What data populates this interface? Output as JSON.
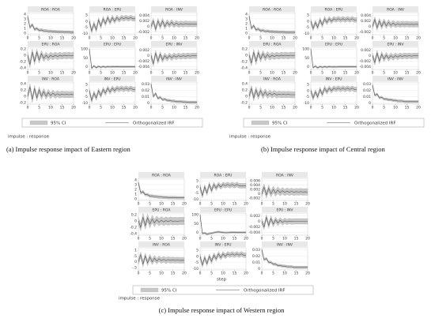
{
  "panels": [
    {
      "legend": [
        "95% CI",
        "Orthogonalized IRF"
      ],
      "note": "impulse : response",
      "caption": "(a) Impulse response impact of Eastern region"
    },
    {
      "legend": [
        "95% CI",
        "Orthogonalized IRF"
      ],
      "note": "impulse : response",
      "caption": "(b) Impulse response impact of Central region"
    },
    {
      "legend": [
        "95% CI",
        "Orthogonalized IRF"
      ],
      "note": "impulse : response",
      "caption": "(c) Impulse response impact of Western region",
      "xlabel": "step"
    }
  ],
  "chart_data": [
    {
      "type": "line",
      "title": "ROA : ROA",
      "xlim": [
        0,
        20
      ],
      "xticks": [
        0,
        5,
        10,
        15,
        20
      ],
      "ylim": [
        -0.3,
        4.3
      ],
      "yticks": [
        0,
        1,
        2,
        3,
        4
      ],
      "ci": 0.3,
      "values": [
        3.5,
        1.2,
        1.8,
        0.8,
        1.0,
        0.6,
        0.7,
        0.5,
        0.5,
        0.4,
        0.4,
        0.35,
        0.35,
        0.3,
        0.3,
        0.3,
        0.25,
        0.25,
        0.25,
        0.2,
        0.2
      ]
    },
    {
      "type": "line",
      "title": "ROA : EPU",
      "xlim": [
        0,
        20
      ],
      "xticks": [
        0,
        5,
        10,
        15,
        20
      ],
      "ylim": [
        -11,
        7
      ],
      "yticks": [
        -10,
        -5,
        0,
        5
      ],
      "ci": 2,
      "values": [
        0,
        -8,
        -2,
        -7,
        1,
        -4,
        2,
        -2,
        3,
        -1,
        3,
        0,
        3,
        1,
        3,
        2,
        3,
        2,
        3,
        2,
        2
      ]
    },
    {
      "type": "line",
      "title": "ROA : INV",
      "xlim": [
        0,
        20
      ],
      "xticks": [
        0,
        5,
        10,
        15,
        20
      ],
      "ylim": [
        -0.003,
        0.005
      ],
      "yticks": [
        -0.002,
        0,
        0.002,
        0.004
      ],
      "ci": 0.001,
      "values": [
        0,
        0.002,
        -0.001,
        0.002,
        0,
        0.002,
        0,
        0.0015,
        0.0005,
        0.0015,
        0.0005,
        0.0012,
        0.0006,
        0.001,
        0.0007,
        0.001,
        0.0008,
        0.0009,
        0.0008,
        0.0009,
        0.0008
      ]
    },
    {
      "type": "line",
      "title": "EPU : ROA",
      "xlim": [
        0,
        20
      ],
      "xticks": [
        0,
        5,
        10,
        15,
        20
      ],
      "ylim": [
        -0.45,
        0.25
      ],
      "yticks": [
        -0.4,
        -0.2,
        0,
        0.2
      ],
      "ci": 0.1,
      "values": [
        0,
        -0.3,
        0.1,
        -0.2,
        0.1,
        -0.15,
        0.05,
        -0.1,
        0,
        -0.08,
        0,
        -0.05,
        0,
        -0.04,
        0,
        -0.03,
        0,
        -0.02,
        0,
        -0.02,
        0
      ]
    },
    {
      "type": "line",
      "title": "EPU : EPU",
      "xlim": [
        0,
        20
      ],
      "xticks": [
        0,
        5,
        10,
        15,
        20
      ],
      "ylim": [
        -15,
        110
      ],
      "yticks": [
        0,
        50,
        100
      ],
      "ci": 5,
      "values": [
        100,
        -8,
        5,
        -5,
        3,
        -3,
        2,
        -2,
        1,
        -1,
        1,
        0,
        1,
        0,
        0,
        0,
        0,
        0,
        0,
        0,
        0
      ]
    },
    {
      "type": "line",
      "title": "EPU : INV",
      "xlim": [
        0,
        20
      ],
      "xticks": [
        0,
        5,
        10,
        15,
        20
      ],
      "ylim": [
        -0.005,
        0.003
      ],
      "yticks": [
        -0.004,
        -0.002,
        0,
        0.002
      ],
      "ci": 0.001,
      "values": [
        0,
        -0.003,
        0.001,
        -0.002,
        0.0005,
        -0.0015,
        0,
        -0.001,
        0,
        -0.0008,
        0,
        -0.0005,
        0,
        -0.0004,
        0,
        -0.0003,
        0,
        -0.0002,
        0,
        -0.0001,
        0
      ]
    },
    {
      "type": "line",
      "title": "INV : ROA",
      "xlim": [
        0,
        20
      ],
      "xticks": [
        0,
        5,
        10,
        15,
        20
      ],
      "ylim": [
        -0.25,
        0.45
      ],
      "yticks": [
        -0.2,
        0,
        0.2,
        0.4
      ],
      "ci": 0.1,
      "values": [
        0,
        0.3,
        -0.1,
        0.25,
        -0.05,
        0.2,
        0,
        0.15,
        0,
        0.12,
        0.02,
        0.1,
        0.03,
        0.08,
        0.04,
        0.07,
        0.05,
        0.06,
        0.05,
        0.06,
        0.05
      ]
    },
    {
      "type": "line",
      "title": "INV : EPU",
      "xlim": [
        0,
        20
      ],
      "xticks": [
        0,
        5,
        10,
        15,
        20
      ],
      "ylim": [
        -11,
        7
      ],
      "yticks": [
        -10,
        -5,
        0,
        5
      ],
      "ci": 2,
      "values": [
        0,
        -8,
        -2,
        -6,
        0,
        -4,
        1,
        -2,
        2,
        -1,
        2,
        0,
        2,
        1,
        2,
        1,
        2,
        1,
        2,
        1,
        1
      ]
    },
    {
      "type": "line",
      "title": "INV : INV",
      "xlim": [
        0,
        20
      ],
      "xticks": [
        0,
        5,
        10,
        15,
        20
      ],
      "ylim": [
        -0.002,
        0.033
      ],
      "yticks": [
        0,
        0.01,
        0.02,
        0.03
      ],
      "ci": 0.002,
      "values": [
        0.03,
        0.01,
        0.015,
        0.007,
        0.009,
        0.005,
        0.006,
        0.004,
        0.004,
        0.003,
        0.003,
        0.002,
        0.002,
        0.002,
        0.0015,
        0.0015,
        0.001,
        0.001,
        0.001,
        0.001,
        0.001
      ]
    },
    {
      "type": "line",
      "title": "ROA : ROA",
      "xlim": [
        0,
        20
      ],
      "xticks": [
        0,
        5,
        10,
        15,
        20
      ],
      "ylim": [
        -0.3,
        4.3
      ],
      "yticks": [
        0,
        1,
        2,
        3,
        4
      ],
      "ci": 0.3,
      "values": [
        3.6,
        1.0,
        1.6,
        0.7,
        0.9,
        0.5,
        0.6,
        0.4,
        0.45,
        0.35,
        0.35,
        0.3,
        0.3,
        0.25,
        0.25,
        0.25,
        0.2,
        0.2,
        0.2,
        0.2,
        0.2
      ]
    },
    {
      "type": "line",
      "title": "ROA : EPU",
      "xlim": [
        0,
        20
      ],
      "xticks": [
        0,
        5,
        10,
        15,
        20
      ],
      "ylim": [
        -11,
        7
      ],
      "yticks": [
        -10,
        -5,
        0,
        5
      ],
      "ci": 2,
      "values": [
        0,
        -6,
        -1,
        -5,
        1,
        -3,
        2,
        -1,
        2,
        0,
        2,
        1,
        2,
        1,
        2,
        1,
        2,
        1,
        2,
        1,
        1
      ]
    },
    {
      "type": "line",
      "title": "ROA : INV",
      "xlim": [
        0,
        20
      ],
      "xticks": [
        0,
        5,
        10,
        15,
        20
      ],
      "ylim": [
        -0.003,
        0.005
      ],
      "yticks": [
        -0.002,
        0,
        0.002,
        0.004
      ],
      "ci": 0.001,
      "values": [
        0,
        0.0025,
        -0.0005,
        0.002,
        0,
        0.0018,
        0.0002,
        0.0015,
        0.0004,
        0.0012,
        0.0005,
        0.001,
        0.0006,
        0.0009,
        0.0007,
        0.0009,
        0.0007,
        0.0008,
        0.0007,
        0.0008,
        0.0007
      ]
    },
    {
      "type": "line",
      "title": "EPU : ROA",
      "xlim": [
        0,
        20
      ],
      "xticks": [
        0,
        5,
        10,
        15,
        20
      ],
      "ylim": [
        -0.45,
        0.25
      ],
      "yticks": [
        -0.4,
        -0.2,
        0,
        0.2
      ],
      "ci": 0.1,
      "values": [
        0,
        -0.25,
        0.1,
        -0.2,
        0.08,
        -0.12,
        0.05,
        -0.08,
        0.02,
        -0.06,
        0,
        -0.04,
        0,
        -0.03,
        0,
        -0.02,
        0,
        -0.02,
        0,
        -0.01,
        0
      ]
    },
    {
      "type": "line",
      "title": "EPU : EPU",
      "xlim": [
        0,
        20
      ],
      "xticks": [
        0,
        5,
        10,
        15,
        20
      ],
      "ylim": [
        -15,
        110
      ],
      "yticks": [
        0,
        50,
        100
      ],
      "ci": 5,
      "values": [
        100,
        -5,
        4,
        -6,
        2,
        -3,
        1,
        -2,
        1,
        -1,
        0,
        -1,
        0,
        0,
        0,
        0,
        0,
        0,
        0,
        0,
        0
      ]
    },
    {
      "type": "line",
      "title": "EPU : INV",
      "xlim": [
        0,
        20
      ],
      "xticks": [
        0,
        5,
        10,
        15,
        20
      ],
      "ylim": [
        -0.005,
        0.003
      ],
      "yticks": [
        -0.004,
        -0.002,
        0,
        0.002
      ],
      "ci": 0.001,
      "values": [
        0,
        -0.0025,
        0.001,
        -0.002,
        0.0005,
        -0.0012,
        0.0002,
        -0.001,
        0,
        -0.0007,
        0,
        -0.0005,
        0,
        -0.0003,
        0,
        -0.0002,
        0,
        -0.0002,
        0,
        -0.0001,
        0
      ]
    },
    {
      "type": "line",
      "title": "INV : ROA",
      "xlim": [
        0,
        20
      ],
      "xticks": [
        0,
        5,
        10,
        15,
        20
      ],
      "ylim": [
        -0.25,
        0.45
      ],
      "yticks": [
        -0.2,
        0,
        0.2,
        0.4
      ],
      "ci": 0.1,
      "values": [
        0,
        0.25,
        -0.05,
        0.2,
        0,
        0.18,
        0.02,
        0.14,
        0.03,
        0.1,
        0.04,
        0.09,
        0.04,
        0.07,
        0.05,
        0.06,
        0.05,
        0.06,
        0.05,
        0.05,
        0.05
      ]
    },
    {
      "type": "line",
      "title": "INV : EPU",
      "xlim": [
        0,
        20
      ],
      "xticks": [
        0,
        5,
        10,
        15,
        20
      ],
      "ylim": [
        -11,
        7
      ],
      "yticks": [
        -10,
        -5,
        0,
        5
      ],
      "ci": 2,
      "values": [
        0,
        -6,
        -1,
        -5,
        1,
        -3,
        2,
        -1,
        2,
        0,
        2,
        1,
        2,
        1,
        2,
        1,
        2,
        1,
        2,
        1,
        1
      ]
    },
    {
      "type": "line",
      "title": "INV : INV",
      "xlim": [
        0,
        20
      ],
      "xticks": [
        0,
        5,
        10,
        15,
        20
      ],
      "ylim": [
        -0.002,
        0.033
      ],
      "yticks": [
        0,
        0.01,
        0.02,
        0.03
      ],
      "ci": 0.002,
      "values": [
        0.028,
        0.012,
        0.014,
        0.008,
        0.009,
        0.006,
        0.006,
        0.005,
        0.005,
        0.004,
        0.004,
        0.003,
        0.003,
        0.003,
        0.002,
        0.002,
        0.002,
        0.002,
        0.002,
        0.002,
        0.002
      ]
    },
    {
      "type": "line",
      "title": "ROA : ROA",
      "xlim": [
        0,
        20
      ],
      "xticks": [
        0,
        5,
        10,
        15,
        20
      ],
      "ylim": [
        -0.3,
        4.3
      ],
      "yticks": [
        0,
        1,
        2,
        3,
        4
      ],
      "ci": 0.3,
      "values": [
        3.4,
        1.3,
        1.5,
        0.9,
        0.9,
        0.6,
        0.6,
        0.5,
        0.5,
        0.4,
        0.4,
        0.35,
        0.35,
        0.3,
        0.3,
        0.3,
        0.3,
        0.25,
        0.25,
        0.25,
        0.25
      ]
    },
    {
      "type": "line",
      "title": "ROA : EPU",
      "xlim": [
        0,
        20
      ],
      "xticks": [
        0,
        5,
        10,
        15,
        20
      ],
      "ylim": [
        -11,
        7
      ],
      "yticks": [
        -10,
        -5,
        0,
        5
      ],
      "ci": 2,
      "values": [
        0,
        -7,
        0,
        -5,
        2,
        -3,
        2,
        -1,
        2,
        0,
        2,
        1,
        2,
        1,
        2,
        1,
        2,
        1,
        1,
        1,
        1
      ]
    },
    {
      "type": "line",
      "title": "ROA : INV",
      "xlim": [
        0,
        20
      ],
      "xticks": [
        0,
        5,
        10,
        15,
        20
      ],
      "ylim": [
        -0.003,
        0.007
      ],
      "yticks": [
        -0.002,
        0,
        0.002,
        0.004,
        0.006
      ],
      "ci": 0.0015,
      "values": [
        0,
        0.003,
        -0.0005,
        0.0025,
        0,
        0.002,
        0.0003,
        0.0017,
        0.0005,
        0.0014,
        0.0006,
        0.0012,
        0.0007,
        0.0011,
        0.0007,
        0.001,
        0.0008,
        0.001,
        0.0008,
        0.0009,
        0.0008
      ]
    },
    {
      "type": "line",
      "title": "EPU : ROA",
      "xlim": [
        0,
        20
      ],
      "xticks": [
        0,
        5,
        10,
        15,
        20
      ],
      "ylim": [
        -0.45,
        0.25
      ],
      "yticks": [
        -0.4,
        -0.2,
        0,
        0.2
      ],
      "ci": 0.12,
      "values": [
        0,
        -0.2,
        0.12,
        -0.15,
        0.1,
        -0.1,
        0.06,
        -0.06,
        0.04,
        -0.04,
        0.02,
        -0.03,
        0.01,
        -0.02,
        0.01,
        -0.01,
        0,
        -0.01,
        0,
        0,
        0
      ]
    },
    {
      "type": "line",
      "title": "EPU : EPU",
      "xlim": [
        0,
        20
      ],
      "xticks": [
        0,
        5,
        10,
        15,
        20
      ],
      "ylim": [
        -15,
        110
      ],
      "yticks": [
        0,
        50,
        100
      ],
      "ci": 5,
      "values": [
        100,
        -6,
        -2,
        -10,
        -6,
        -4,
        -1,
        2,
        3,
        2,
        0,
        -1,
        -1,
        0,
        1,
        1,
        0,
        0,
        0,
        0,
        0
      ]
    },
    {
      "type": "line",
      "title": "EPU : INV",
      "xlim": [
        0,
        20
      ],
      "xticks": [
        0,
        5,
        10,
        15,
        20
      ],
      "ylim": [
        -0.005,
        0.003
      ],
      "yticks": [
        -0.004,
        -0.002,
        0,
        0.002
      ],
      "ci": 0.001,
      "values": [
        0,
        -0.002,
        0.0015,
        -0.0015,
        0.001,
        -0.001,
        0.0006,
        -0.0006,
        0.0004,
        -0.0004,
        0.0002,
        -0.0002,
        0.0001,
        -0.0001,
        0,
        0,
        0,
        0,
        0,
        0,
        0
      ]
    },
    {
      "type": "line",
      "title": "INV : ROA",
      "xlim": [
        0,
        20
      ],
      "xticks": [
        0,
        5,
        10,
        15,
        20
      ],
      "ylim": [
        -0.7,
        1.2
      ],
      "yticks": [
        {
          "value": -0.5,
          "label": "-.5"
        },
        0,
        {
          "value": 0.5,
          "label": ".5"
        },
        1
      ],
      "ci": 0.25,
      "values": [
        0,
        0.6,
        -0.2,
        0.5,
        -0.1,
        0.4,
        0,
        0.3,
        0.05,
        0.25,
        0.1,
        0.2,
        0.1,
        0.18,
        0.12,
        0.15,
        0.12,
        0.14,
        0.12,
        0.13,
        0.12
      ]
    },
    {
      "type": "line",
      "title": "INV : EPU",
      "xlim": [
        0,
        20
      ],
      "xticks": [
        0,
        5,
        10,
        15,
        20
      ],
      "ylim": [
        -11,
        7
      ],
      "yticks": [
        -10,
        -5,
        0,
        5
      ],
      "ci": 2,
      "values": [
        0,
        -7,
        -1,
        -6,
        0,
        -4,
        1,
        -2,
        2,
        -1,
        2,
        0,
        2,
        1,
        2,
        1,
        2,
        1,
        2,
        1,
        1
      ]
    },
    {
      "type": "line",
      "title": "INV : INV",
      "xlim": [
        0,
        20
      ],
      "xticks": [
        0,
        5,
        10,
        15,
        20
      ],
      "ylim": [
        -0.002,
        0.033
      ],
      "yticks": [
        0,
        0.01,
        0.02,
        0.03
      ],
      "ci": 0.002,
      "values": [
        0.03,
        0.014,
        0.016,
        0.01,
        0.01,
        0.007,
        0.007,
        0.005,
        0.005,
        0.004,
        0.004,
        0.003,
        0.003,
        0.003,
        0.002,
        0.002,
        0.002,
        0.002,
        0.002,
        0.002,
        0.002
      ]
    }
  ]
}
